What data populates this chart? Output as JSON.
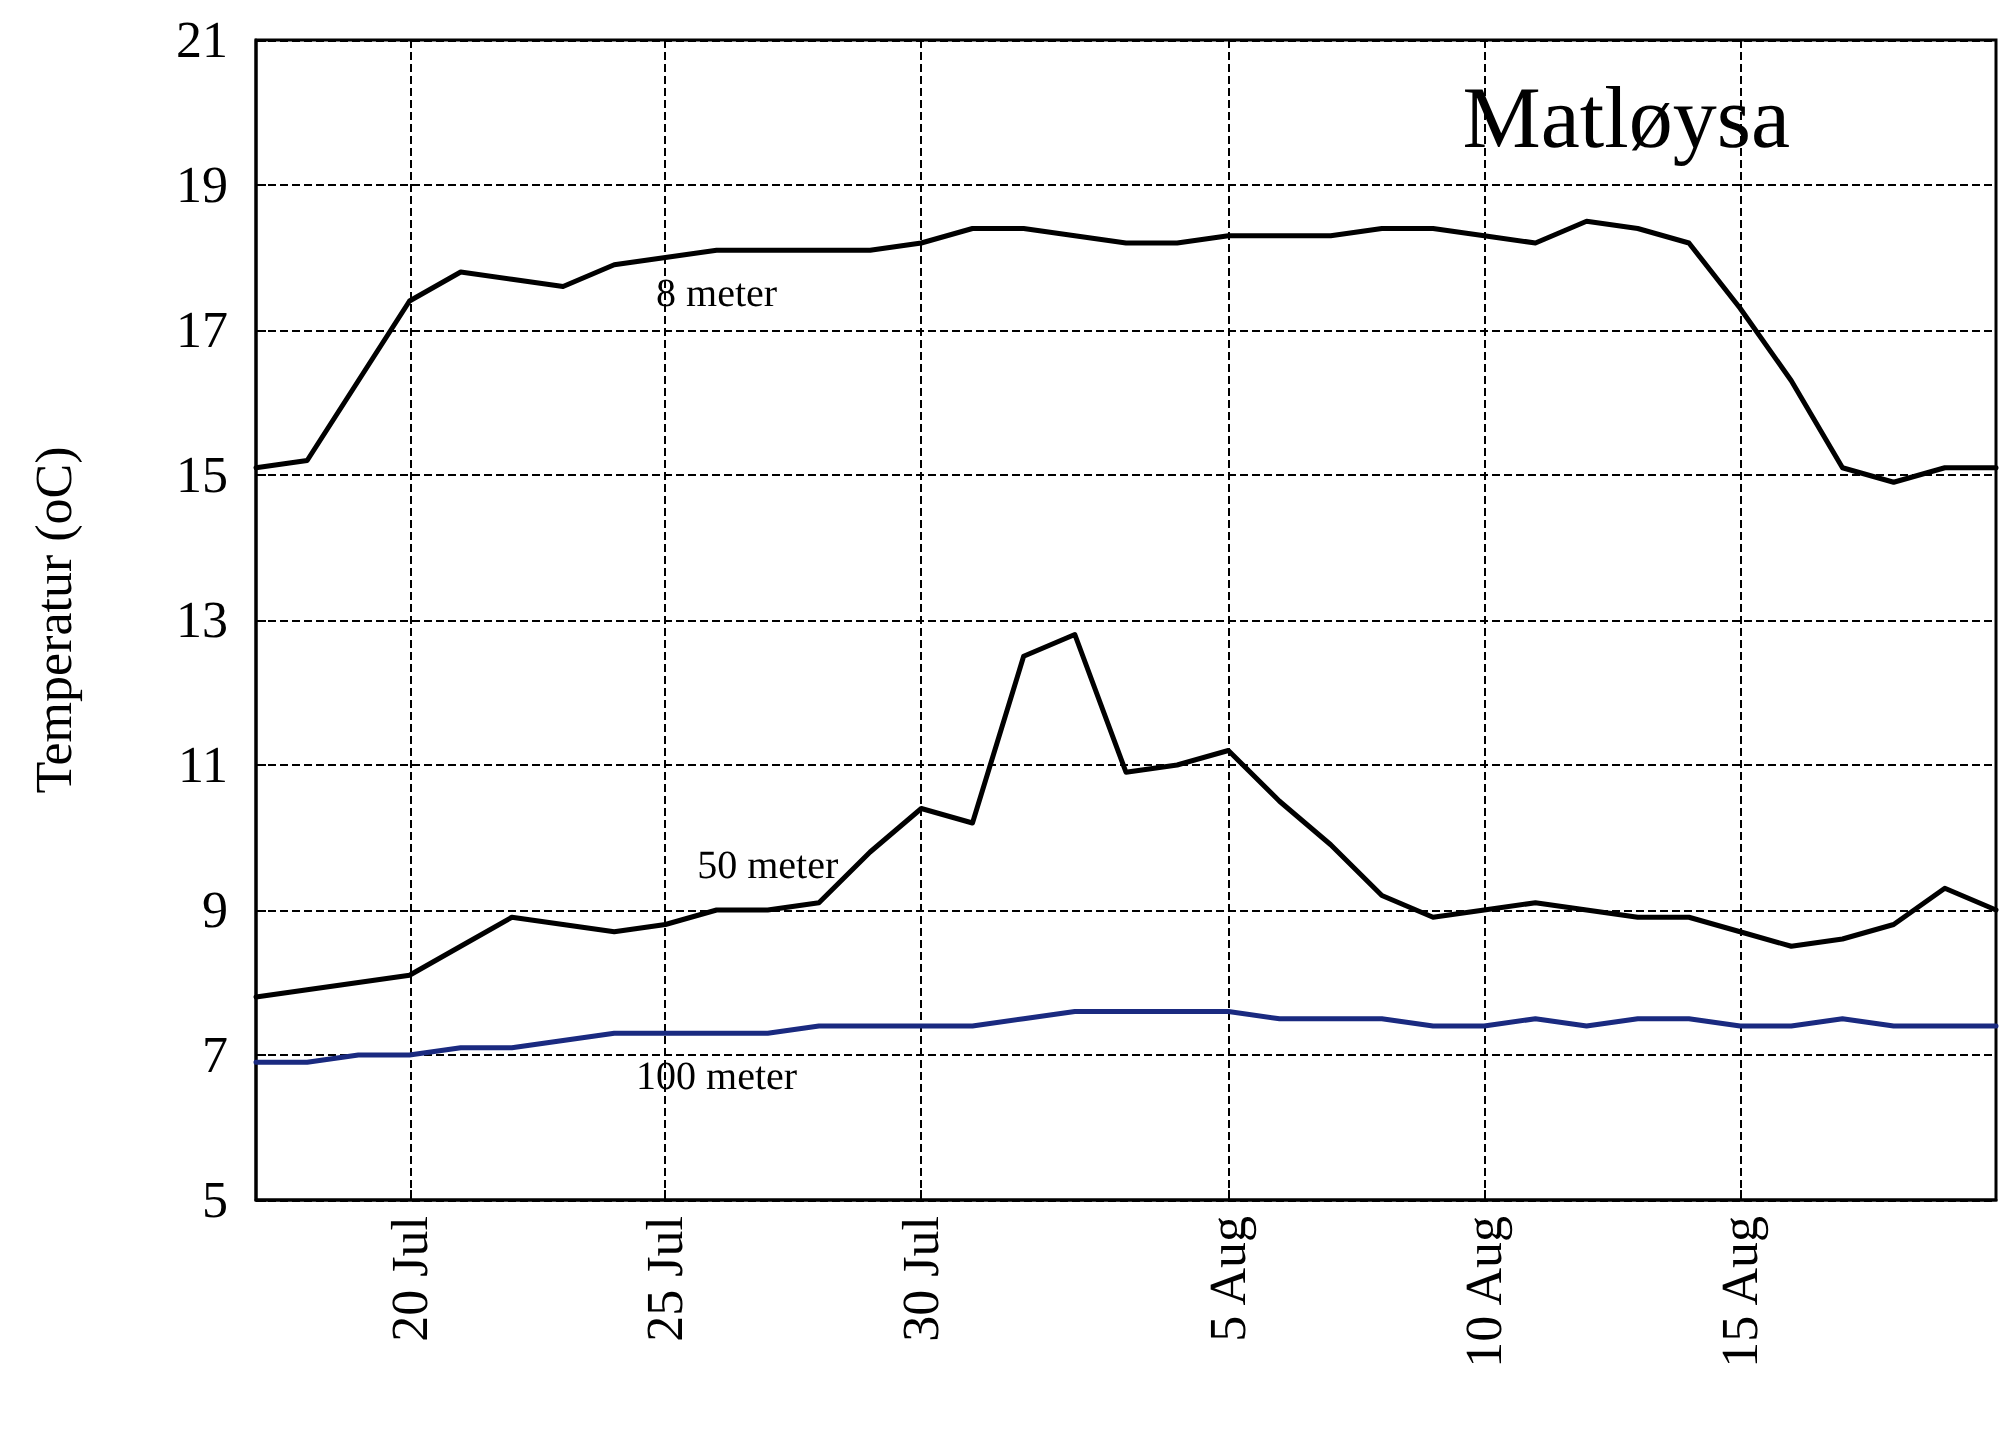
{
  "chart_data": {
    "type": "line",
    "title": "Matløysa",
    "ylabel": "Temperatur (oC)",
    "x": [
      "--07-17",
      "--07-18",
      "--07-19",
      "--07-20",
      "--07-21",
      "--07-22",
      "--07-23",
      "--07-24",
      "--07-25",
      "--07-26",
      "--07-27",
      "--07-28",
      "--07-29",
      "--07-30",
      "--07-31",
      "--08-01",
      "--08-02",
      "--08-03",
      "--08-04",
      "--08-05",
      "--08-06",
      "--08-07",
      "--08-08",
      "--08-09",
      "--08-10",
      "--08-11",
      "--08-12",
      "--08-13",
      "--08-14",
      "--08-15",
      "--08-16",
      "--08-17",
      "--08-18",
      "--08-19",
      "--08-20"
    ],
    "series": [
      {
        "name": "8 meter",
        "color": "#000000",
        "values": [
          15.1,
          15.2,
          16.3,
          17.4,
          17.8,
          17.7,
          17.6,
          17.9,
          18.0,
          18.1,
          18.1,
          18.1,
          18.1,
          18.2,
          18.4,
          18.4,
          18.3,
          18.2,
          18.2,
          18.3,
          18.3,
          18.3,
          18.4,
          18.4,
          18.3,
          18.2,
          18.5,
          18.4,
          18.2,
          17.3,
          16.3,
          15.1,
          14.9,
          15.1,
          15.1
        ]
      },
      {
        "name": "50 meter",
        "color": "#000000",
        "values": [
          7.8,
          7.9,
          8.0,
          8.1,
          8.5,
          8.9,
          8.8,
          8.7,
          8.8,
          9.0,
          9.0,
          9.1,
          9.8,
          10.4,
          10.2,
          12.5,
          12.8,
          10.9,
          11.0,
          11.2,
          10.5,
          9.9,
          9.2,
          8.9,
          9.0,
          9.1,
          9.0,
          8.9,
          8.9,
          8.7,
          8.5,
          8.6,
          8.8,
          9.3,
          9.0
        ]
      },
      {
        "name": "100 meter",
        "color": "#1a2a80",
        "values": [
          6.9,
          6.9,
          7.0,
          7.0,
          7.1,
          7.1,
          7.2,
          7.3,
          7.3,
          7.3,
          7.3,
          7.4,
          7.4,
          7.4,
          7.4,
          7.5,
          7.6,
          7.6,
          7.6,
          7.6,
          7.5,
          7.5,
          7.5,
          7.4,
          7.4,
          7.5,
          7.4,
          7.5,
          7.5,
          7.4,
          7.4,
          7.5,
          7.4,
          7.4,
          7.4
        ]
      }
    ],
    "xlim": [
      "--07-17",
      "--08-20"
    ],
    "xticks": [
      {
        "value": "--07-20",
        "label": "20 Jul"
      },
      {
        "value": "--07-25",
        "label": "25 Jul"
      },
      {
        "value": "--07-30",
        "label": "30 Jul"
      },
      {
        "value": "--08-05",
        "label": "5 Aug"
      },
      {
        "value": "--08-10",
        "label": "10 Aug"
      },
      {
        "value": "--08-15",
        "label": "15 Aug"
      }
    ],
    "ylim": [
      5,
      21
    ],
    "yticks": [
      5,
      7,
      9,
      11,
      13,
      15,
      17,
      19,
      21
    ],
    "grid": true,
    "legend": false,
    "marker": "none",
    "line_style": "solid"
  }
}
